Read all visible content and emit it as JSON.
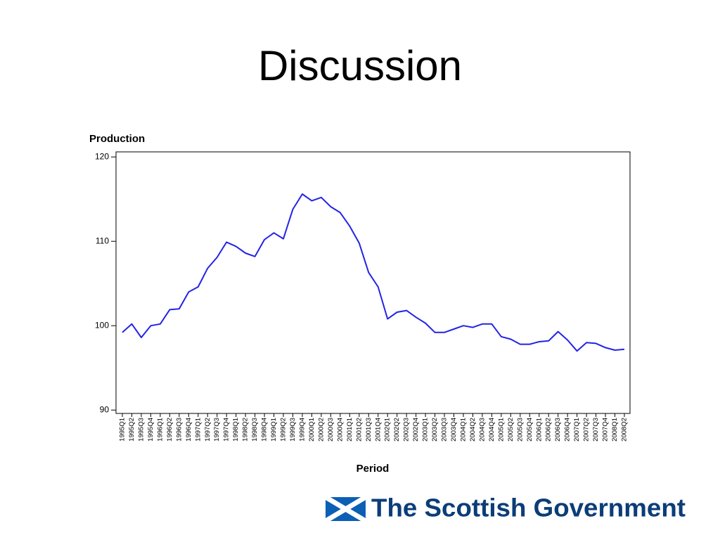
{
  "slide_title": "Discussion",
  "chart_data": {
    "type": "line",
    "y_label": "Production",
    "x_label": "Period",
    "categories": [
      "1995Q1",
      "1995Q2",
      "1995Q3",
      "1995Q4",
      "1996Q1",
      "1996Q2",
      "1996Q3",
      "1996Q4",
      "1997Q1",
      "1997Q2",
      "1997Q3",
      "1997Q4",
      "1998Q1",
      "1998Q2",
      "1998Q3",
      "1998Q4",
      "1999Q1",
      "1999Q2",
      "1999Q3",
      "1999Q4",
      "2000Q1",
      "2000Q2",
      "2000Q3",
      "2000Q4",
      "2001Q1",
      "2001Q2",
      "2001Q3",
      "2001Q4",
      "2002Q1",
      "2002Q2",
      "2002Q3",
      "2002Q4",
      "2003Q1",
      "2003Q2",
      "2003Q3",
      "2003Q4",
      "2004Q1",
      "2004Q2",
      "2004Q3",
      "2004Q4",
      "2005Q1",
      "2005Q2",
      "2005Q3",
      "2005Q4",
      "2006Q1",
      "2006Q2",
      "2006Q3",
      "2006Q4",
      "2007Q1",
      "2007Q2",
      "2007Q3",
      "2007Q4",
      "2008Q1",
      "2008Q2"
    ],
    "values": [
      99.2,
      100.2,
      98.6,
      100.0,
      100.2,
      101.9,
      102.0,
      104.0,
      104.6,
      106.8,
      108.1,
      109.9,
      109.4,
      108.6,
      108.2,
      110.2,
      111.0,
      110.3,
      113.8,
      115.6,
      114.8,
      115.2,
      114.1,
      113.4,
      111.8,
      109.8,
      106.3,
      104.6,
      100.8,
      101.6,
      101.8,
      101.0,
      100.3,
      99.2,
      99.2,
      99.6,
      100.0,
      99.8,
      100.2,
      100.2,
      98.7,
      98.4,
      97.8,
      97.8,
      98.1,
      98.2,
      99.3,
      98.3,
      97.0,
      98.0,
      97.9,
      97.4,
      97.1,
      97.2
    ],
    "color": "#2323e6",
    "ylim": [
      89.6,
      120.6
    ],
    "yticks": [
      90,
      100,
      110,
      120
    ],
    "grid": false
  },
  "logo_text": "The Scottish Government"
}
